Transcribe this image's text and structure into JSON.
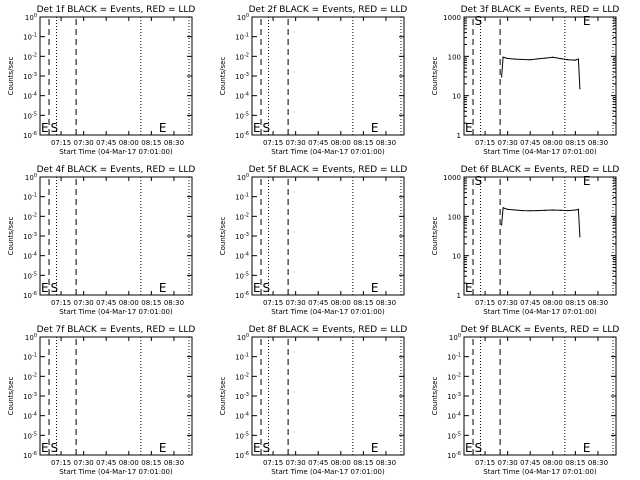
{
  "chart_data": [
    {
      "title": "Det 1f BLACK = Events, RED = LLD",
      "xlabel": "Start Time (04-Mar-17 07:01:00)",
      "ylabel": "Counts/sec",
      "type": "line",
      "xlim": [
        "07:01",
        "08:42"
      ],
      "xticks": [
        "07:15",
        "07:30",
        "07:45",
        "08:00",
        "08:15",
        "08:30"
      ],
      "yscale": "log",
      "yticks": [
        "10^0",
        "10^-1",
        "10^-2",
        "10^-3",
        "10^-4",
        "10^-5",
        "10^-6"
      ],
      "ylim": [
        1,
        1e-06
      ],
      "events": [],
      "markers": [
        {
          "label": "S",
          "time": "07:06"
        },
        {
          "label": "E",
          "time": "08:18"
        }
      ],
      "marker_E_prefix": "E",
      "dashed_lines": [
        "07:07",
        "07:25"
      ],
      "dotted_lines": [
        "07:12",
        "08:08",
        "08:40"
      ],
      "series": []
    },
    {
      "title": "Det 2f BLACK = Events, RED = LLD",
      "xlabel": "Start Time (04-Mar-17 07:01:00)",
      "ylabel": "Counts/sec",
      "type": "line",
      "xlim": [
        "07:01",
        "08:42"
      ],
      "xticks": [
        "07:15",
        "07:30",
        "07:45",
        "08:00",
        "08:15",
        "08:30"
      ],
      "yscale": "log",
      "yticks": [
        "10^0",
        "10^-1",
        "10^-2",
        "10^-3",
        "10^-4",
        "10^-5",
        "10^-6"
      ],
      "ylim": [
        1,
        1e-06
      ],
      "markers": [
        {
          "label": "S",
          "time": "07:06"
        },
        {
          "label": "E",
          "time": "08:18"
        }
      ],
      "marker_E_prefix": "E",
      "dashed_lines": [
        "07:07",
        "07:25"
      ],
      "dotted_lines": [
        "07:12",
        "08:08",
        "08:40"
      ],
      "series": []
    },
    {
      "title": "Det 3f BLACK = Events, RED = LLD",
      "xlabel": "Start Time (04-Mar-17 07:01:00)",
      "ylabel": "Counts/sec",
      "type": "line",
      "xlim": [
        "07:01",
        "08:42"
      ],
      "xticks": [
        "07:15",
        "07:30",
        "07:45",
        "08:00",
        "08:15",
        "08:30"
      ],
      "yscale": "log",
      "yticks": [
        "1000",
        "100",
        "10",
        "1"
      ],
      "ylim": [
        1,
        1000
      ],
      "markers": [
        {
          "label": "S",
          "time": "07:06"
        },
        {
          "label": "E",
          "time": "08:18"
        }
      ],
      "marker_E_prefix": "E",
      "dashed_lines": [
        "07:07",
        "07:25"
      ],
      "dotted_lines": [
        "07:12",
        "08:08",
        "08:40"
      ],
      "series": [
        {
          "x": [
            "07:26",
            "07:27",
            "07:30",
            "07:35",
            "07:40",
            "07:45",
            "07:50",
            "07:55",
            "08:00",
            "08:05",
            "08:10",
            "08:15",
            "08:17",
            "08:18"
          ],
          "values": [
            30,
            95,
            88,
            85,
            83,
            82,
            86,
            90,
            95,
            88,
            82,
            80,
            85,
            15
          ]
        }
      ]
    },
    {
      "title": "Det 4f BLACK = Events, RED = LLD",
      "xlabel": "Start Time (04-Mar-17 07:01:00)",
      "ylabel": "Counts/sec",
      "type": "line",
      "xlim": [
        "07:01",
        "08:42"
      ],
      "xticks": [
        "07:15",
        "07:30",
        "07:45",
        "08:00",
        "08:15",
        "08:30"
      ],
      "yscale": "log",
      "yticks": [
        "10^0",
        "10^-1",
        "10^-2",
        "10^-3",
        "10^-4",
        "10^-5",
        "10^-6"
      ],
      "ylim": [
        1,
        1e-06
      ],
      "markers": [
        {
          "label": "S",
          "time": "07:06"
        },
        {
          "label": "E",
          "time": "08:18"
        }
      ],
      "marker_E_prefix": "E",
      "dashed_lines": [
        "07:07",
        "07:25"
      ],
      "dotted_lines": [
        "07:12",
        "08:08",
        "08:40"
      ],
      "series": []
    },
    {
      "title": "Det 5f BLACK = Events, RED = LLD",
      "xlabel": "Start Time (04-Mar-17 07:01:00)",
      "ylabel": "Counts/sec",
      "type": "line",
      "xlim": [
        "07:01",
        "08:42"
      ],
      "xticks": [
        "07:15",
        "07:30",
        "07:45",
        "08:00",
        "08:15",
        "08:30"
      ],
      "yscale": "log",
      "yticks": [
        "10^0",
        "10^-1",
        "10^-2",
        "10^-3",
        "10^-4",
        "10^-5",
        "10^-6"
      ],
      "ylim": [
        1,
        1e-06
      ],
      "markers": [
        {
          "label": "S",
          "time": "07:06"
        },
        {
          "label": "E",
          "time": "08:18"
        }
      ],
      "marker_E_prefix": "E",
      "dashed_lines": [
        "07:07",
        "07:25"
      ],
      "dotted_lines": [
        "07:12",
        "08:08",
        "08:40"
      ],
      "series": []
    },
    {
      "title": "Det 6f BLACK = Events, RED = LLD",
      "xlabel": "Start Time (04-Mar-17 07:01:00)",
      "ylabel": "Counts/sec",
      "type": "line",
      "xlim": [
        "07:01",
        "08:42"
      ],
      "xticks": [
        "07:15",
        "07:30",
        "07:45",
        "08:00",
        "08:15",
        "08:30"
      ],
      "yscale": "log",
      "yticks": [
        "1000",
        "100",
        "10",
        "1"
      ],
      "ylim": [
        1,
        1000
      ],
      "markers": [
        {
          "label": "S",
          "time": "07:06"
        },
        {
          "label": "E",
          "time": "08:18"
        }
      ],
      "marker_E_prefix": "E",
      "dashed_lines": [
        "07:07",
        "07:25"
      ],
      "dotted_lines": [
        "07:12",
        "08:08",
        "08:40"
      ],
      "series": [
        {
          "x": [
            "07:26",
            "07:27",
            "07:30",
            "07:35",
            "07:40",
            "07:45",
            "07:50",
            "07:55",
            "08:00",
            "08:05",
            "08:10",
            "08:15",
            "08:17",
            "08:18"
          ],
          "values": [
            60,
            165,
            150,
            145,
            140,
            138,
            140,
            142,
            145,
            142,
            140,
            145,
            150,
            30
          ]
        }
      ]
    },
    {
      "title": "Det 7f BLACK = Events, RED = LLD",
      "xlabel": "Start Time (04-Mar-17 07:01:00)",
      "ylabel": "Counts/sec",
      "type": "line",
      "xlim": [
        "07:01",
        "08:42"
      ],
      "xticks": [
        "07:15",
        "07:30",
        "07:45",
        "08:00",
        "08:15",
        "08:30"
      ],
      "yscale": "log",
      "yticks": [
        "10^0",
        "10^-1",
        "10^-2",
        "10^-3",
        "10^-4",
        "10^-5",
        "10^-6"
      ],
      "ylim": [
        1,
        1e-06
      ],
      "markers": [
        {
          "label": "S",
          "time": "07:06"
        },
        {
          "label": "E",
          "time": "08:18"
        }
      ],
      "marker_E_prefix": "E",
      "dashed_lines": [
        "07:07",
        "07:25"
      ],
      "dotted_lines": [
        "07:12",
        "08:08",
        "08:40"
      ],
      "series": []
    },
    {
      "title": "Det 8f BLACK = Events, RED = LLD",
      "xlabel": "Start Time (04-Mar-17 07:01:00)",
      "ylabel": "Counts/sec",
      "type": "line",
      "xlim": [
        "07:01",
        "08:42"
      ],
      "xticks": [
        "07:15",
        "07:30",
        "07:45",
        "08:00",
        "08:15",
        "08:30"
      ],
      "yscale": "log",
      "yticks": [
        "10^0",
        "10^-1",
        "10^-2",
        "10^-3",
        "10^-4",
        "10^-5",
        "10^-6"
      ],
      "ylim": [
        1,
        1e-06
      ],
      "markers": [
        {
          "label": "S",
          "time": "07:06"
        },
        {
          "label": "E",
          "time": "08:18"
        }
      ],
      "marker_E_prefix": "E",
      "dashed_lines": [
        "07:07",
        "07:25"
      ],
      "dotted_lines": [
        "07:12",
        "08:08",
        "08:40"
      ],
      "series": []
    },
    {
      "title": "Det 9f BLACK = Events, RED = LLD",
      "xlabel": "Start Time (04-Mar-17 07:01:00)",
      "ylabel": "Counts/sec",
      "type": "line",
      "xlim": [
        "07:01",
        "08:42"
      ],
      "xticks": [
        "07:15",
        "07:30",
        "07:45",
        "08:00",
        "08:15",
        "08:30"
      ],
      "yscale": "log",
      "yticks": [
        "10^0",
        "10^-1",
        "10^-2",
        "10^-3",
        "10^-4",
        "10^-5",
        "10^-6"
      ],
      "ylim": [
        1,
        1e-06
      ],
      "markers": [
        {
          "label": "S",
          "time": "07:06"
        },
        {
          "label": "E",
          "time": "08:18"
        }
      ],
      "marker_E_prefix": "E",
      "dashed_lines": [
        "07:07",
        "07:25"
      ],
      "dotted_lines": [
        "07:12",
        "08:08",
        "08:40"
      ],
      "series": []
    }
  ]
}
